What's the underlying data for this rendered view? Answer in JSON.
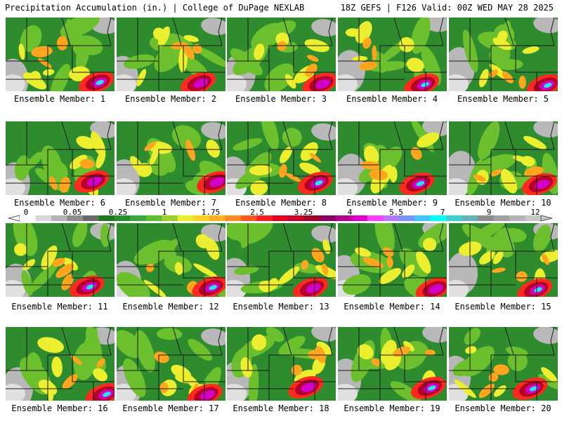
{
  "header": {
    "left_title": "Precipitation Accumulation (in.) | College of DuPage NEXLAB",
    "right_title": "18Z GEFS | F126 Valid: 00Z WED MAY 28 2025"
  },
  "colorbar": {
    "labels": [
      "0",
      "0.05",
      "0.25",
      "1",
      "1.75",
      "2.5",
      "3.25",
      "4",
      "5.5",
      "7",
      "9",
      "12"
    ],
    "colors": [
      "#ffffff",
      "#d8d8d8",
      "#b4b4b4",
      "#8c8c8c",
      "#6a6a6a",
      "#1e7a1e",
      "#2a8f2a",
      "#3aa83a",
      "#5cbf2a",
      "#9bd22a",
      "#e8ee2a",
      "#ffd21e",
      "#ffb01e",
      "#ff8c1e",
      "#ff5a1e",
      "#ff1e1e",
      "#e6001e",
      "#c80028",
      "#a0002a",
      "#8c0064",
      "#b4008c",
      "#dc00c8",
      "#ff3cff",
      "#b478ff",
      "#7894ff",
      "#3cc8ff",
      "#00ffff",
      "#3cd2d2",
      "#64b4b4",
      "#8c8c8c",
      "#a0a0a0",
      "#b4b4b4",
      "#c8c8c8"
    ]
  },
  "panels": [
    {
      "label": "Ensemble Member: 1"
    },
    {
      "label": "Ensemble Member: 2"
    },
    {
      "label": "Ensemble Member: 3"
    },
    {
      "label": "Ensemble Member: 4"
    },
    {
      "label": "Ensemble Member: 5"
    },
    {
      "label": "Ensemble Member: 6"
    },
    {
      "label": "Ensemble Member: 7"
    },
    {
      "label": "Ensemble Member: 8"
    },
    {
      "label": "Ensemble Member: 9"
    },
    {
      "label": "Ensemble Member: 10"
    },
    {
      "label": "Ensemble Member: 11"
    },
    {
      "label": "Ensemble Member: 12"
    },
    {
      "label": "Ensemble Member: 13"
    },
    {
      "label": "Ensemble Member: 14"
    },
    {
      "label": "Ensemble Member: 15"
    },
    {
      "label": "Ensemble Member: 16"
    },
    {
      "label": "Ensemble Member: 17"
    },
    {
      "label": "Ensemble Member: 18"
    },
    {
      "label": "Ensemble Member: 19"
    },
    {
      "label": "Ensemble Member: 20"
    }
  ],
  "fill_colors": {
    "land_base": "#2e8b2e",
    "light_green": "#6cc02e",
    "yellow": "#ecef30",
    "orange": "#ffa51e",
    "red": "#ff2a1e",
    "dark_red": "#b4002a",
    "magenta": "#d200c8",
    "cyan": "#28e6f0",
    "gray": "#b8b8b8",
    "light_gray": "#e0e0e0",
    "boundary": "#1a1a1a"
  }
}
